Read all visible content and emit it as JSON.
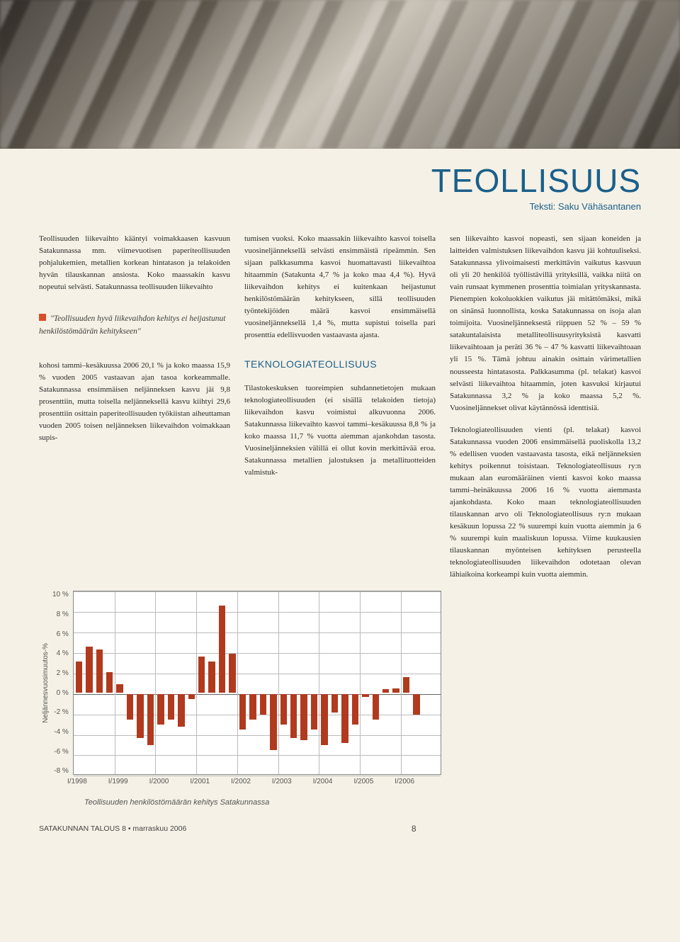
{
  "title": "TEOLLISUUS",
  "subtitle": "Teksti: Saku Vähäsantanen",
  "columns": {
    "c1a": "Teollisuuden liikevaihto kääntyi voimakkaasen kasvuun Satakunnassa mm. viimevuotisen paperiteollisuuden pohjalukemien, metallien korkean hintatason ja telakoiden hyvän tilauskannan ansiosta. Koko maassakin kasvu nopeutui selvästi. Satakunnassa teollisuuden liikevaihto",
    "quote": "\"Teollisuuden hyvä liikevaihdon kehitys ei heijastunut henkilöstömäärän kehitykseen\"",
    "c1b": "kohosi tammi–kesäkuussa 2006 20,1 % ja koko maassa 15,9 % vuoden 2005 vastaavan ajan tasoa korkeammalle. Satakunnassa ensimmäisen neljänneksen kasvu jäi 9,8 prosenttiin, mutta toisella neljänneksellä kasvu kiihtyi 29,6 prosenttiin osittain paperiteollisuuden työkiistan aiheuttaman vuoden 2005 toisen neljänneksen liikevaihdon voimakkaan supis-",
    "c2a": "tumisen vuoksi. Koko maassakin liikevaihto kasvoi toisella vuosineljänneksellä selvästi ensimmäistä ripeämmin. Sen sijaan palkkasumma kasvoi huomattavasti liikevaihtoa hitaammin (Satakunta 4,7 % ja koko maa 4,4 %). Hyvä liikevaihdon kehitys ei kuitenkaan heijastunut henkilöstömäärän kehitykseen, sillä teollisuuden työntekijöiden määrä kasvoi ensimmäisellä vuosineljänneksellä 1,4 %, mutta supistui toisella pari prosenttia edellisvuoden vastaavasta ajasta.",
    "section": "TEKNOLOGIATEOLLISUUS",
    "c2b": "Tilastokeskuksen tuoreimpien suhdannetietojen mukaan teknologiateollisuuden (ei sisällä telakoiden tietoja) liikevaihdon kasvu voimistui alkuvuonna 2006. Satakunnassa liikevaihto kasvoi tammi–kesäkuussa 8,8 % ja koko maassa 11,7 % vuotta aiemman ajankohdan tasosta. Vuosineljänneksien välillä ei ollut kovin merkittävää eroa. Satakunnassa metallien jalostuksen ja metallituotteiden valmistuk-",
    "c3a": "sen liikevaihto kasvoi nopeasti, sen sijaan koneiden ja laitteiden valmistuksen liikevaihdon kasvu jäi kohtuuliseksi. Satakunnassa ylivoimaisesti merkittävin vaikutus kasvuun oli yli 20 henkilöä työllistävillä yrityksillä, vaikka niitä on vain runsaat kymmenen prosenttia toimialan yrityskannasta. Pienempien kokoluokkien vaikutus jäi mitättömäksi, mikä on sinänsä luonnollista, koska Satakunnassa on isoja alan toimijoita. Vuosineljänneksestä riippuen 52 % – 59 % satakuntalaisista metalliteollisuusyrityksistä kasvatti liikevaihtoaan ja peräti 36 % – 47 % kasvatti liikevaihtoaan yli 15 %. Tämä johtuu ainakin osittain värimetallien nousseesta hintatasosta. Palkkasumma (pl. telakat) kasvoi selvästi liikevaihtoa hitaammin, joten kasvuksi kirjautui Satakunnassa 3,2 % ja koko maassa 5,2 %. Vuosineljännekset olivat käytännössä identtisiä.",
    "c3b": "Teknologiateollisuuden vienti (pl. telakat) kasvoi Satakunnassa vuoden 2006 ensimmäisellä puoliskolla 13,2 % edellisen vuoden vastaavasta tasosta, eikä neljänneksien kehitys poikennut toisistaan. Teknologiateollisuus ry:n mukaan alan euromääräinen vienti kasvoi koko maassa tammi–heinäkuussa 2006 16 % vuotta aiemmasta ajankohdasta. Koko maan teknologiateollisuuden tilauskannan arvo oli Teknologiateollisuus ry:n mukaan kesäkuun lopussa 22 % suurempi kuin vuotta aiemmin ja 6 % suurempi kuin maaliskuun lopussa. Viime kuukausien tilauskannan myönteisen kehityksen perusteella teknologiateollisuuden liikevaihdon odotetaan olevan lähiaikoina korkeampi kuin vuotta aiemmin."
  },
  "chart": {
    "y_label": "Neljännesvuosimuutos-%",
    "ymin": -8,
    "ymax": 10,
    "ystep": 2,
    "y_ticks": [
      "10 %",
      "8 %",
      "6 %",
      "4 %",
      "2 %",
      "0 %",
      "-2 %",
      "-4 %",
      "-6 %",
      "-8 %"
    ],
    "x_ticks": [
      "I/1998",
      "I/1999",
      "I/2000",
      "I/2001",
      "I/2002",
      "I/2003",
      "I/2004",
      "I/2005",
      "I/2006"
    ],
    "bar_color": "#b13a1e",
    "grid_color": "#bbbbbb",
    "border_color": "#888888",
    "background_color": "#ffffff",
    "caption": "Teollisuuden henkilöstömäärän kehitys Satakunnassa",
    "values": [
      3.0,
      4.5,
      4.2,
      2.0,
      0.8,
      -2.5,
      -4.3,
      -5.0,
      -3.0,
      -2.5,
      -3.2,
      -0.5,
      3.5,
      3.0,
      8.5,
      3.8,
      -3.5,
      -2.5,
      -2.0,
      -5.5,
      -3.0,
      -4.3,
      -4.5,
      -3.5,
      -5.0,
      -1.8,
      -4.8,
      -3.0,
      -0.3,
      -2.5,
      0.3,
      0.4,
      1.5,
      -2.0
    ]
  },
  "footer": {
    "left": "SATAKUNNAN TALOUS 8 • marraskuu 2006",
    "page": "8"
  }
}
